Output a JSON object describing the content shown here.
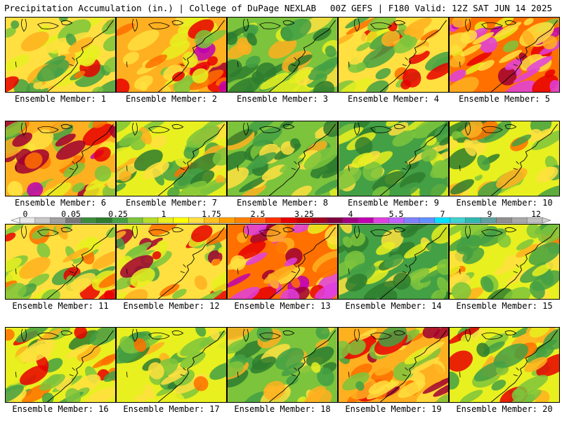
{
  "header": {
    "left": "Precipitation Accumulation (in.) | College of DuPage NEXLAB",
    "right": "00Z GEFS | F180 Valid: 12Z SAT JUN 14 2025"
  },
  "panels": [
    {
      "member": 1,
      "label": "Ensemble Member: 1",
      "bias": 0.55
    },
    {
      "member": 2,
      "label": "Ensemble Member: 2",
      "bias": 0.7
    },
    {
      "member": 3,
      "label": "Ensemble Member: 3",
      "bias": 0.35
    },
    {
      "member": 4,
      "label": "Ensemble Member: 4",
      "bias": 0.55
    },
    {
      "member": 5,
      "label": "Ensemble Member: 5",
      "bias": 0.75
    },
    {
      "member": 6,
      "label": "Ensemble Member: 6",
      "bias": 0.65
    },
    {
      "member": 7,
      "label": "Ensemble Member: 7",
      "bias": 0.45
    },
    {
      "member": 8,
      "label": "Ensemble Member: 8",
      "bias": 0.35
    },
    {
      "member": 9,
      "label": "Ensemble Member: 9",
      "bias": 0.3
    },
    {
      "member": 10,
      "label": "Ensemble Member: 10",
      "bias": 0.45
    },
    {
      "member": 11,
      "label": "Ensemble Member: 11",
      "bias": 0.55
    },
    {
      "member": 12,
      "label": "Ensemble Member: 12",
      "bias": 0.6
    },
    {
      "member": 13,
      "label": "Ensemble Member: 13",
      "bias": 0.8
    },
    {
      "member": 14,
      "label": "Ensemble Member: 14",
      "bias": 0.3
    },
    {
      "member": 15,
      "label": "Ensemble Member: 15",
      "bias": 0.45
    },
    {
      "member": 16,
      "label": "Ensemble Member: 16",
      "bias": 0.5
    },
    {
      "member": 17,
      "label": "Ensemble Member: 17",
      "bias": 0.45
    },
    {
      "member": 18,
      "label": "Ensemble Member: 18",
      "bias": 0.4
    },
    {
      "member": 19,
      "label": "Ensemble Member: 19",
      "bias": 0.65
    },
    {
      "member": 20,
      "label": "Ensemble Member: 20",
      "bias": 0.5
    }
  ],
  "colorbar": {
    "colors": [
      "#e8e8e8",
      "#c8c8c8",
      "#a0a0a0",
      "#787878",
      "#3c8c3c",
      "#2e7d2e",
      "#44a044",
      "#7cc43c",
      "#b4dc28",
      "#e8f020",
      "#ffff00",
      "#ffe040",
      "#ffc020",
      "#ffa000",
      "#ff8000",
      "#ff6010",
      "#ff3000",
      "#e80000",
      "#c80000",
      "#a00020",
      "#800040",
      "#a00080",
      "#c000b0",
      "#e040e0",
      "#c060ff",
      "#8080ff",
      "#6090ff",
      "#00e0ff",
      "#40d0d0",
      "#30b8b0",
      "#60a0a0",
      "#909090",
      "#a8a8a8",
      "#c0c0c0"
    ],
    "tick_labels": [
      "0",
      "0.05",
      "0.25",
      "1",
      "1.75",
      "2.5",
      "3.25",
      "4",
      "5.5",
      "7",
      "9",
      "12"
    ]
  }
}
